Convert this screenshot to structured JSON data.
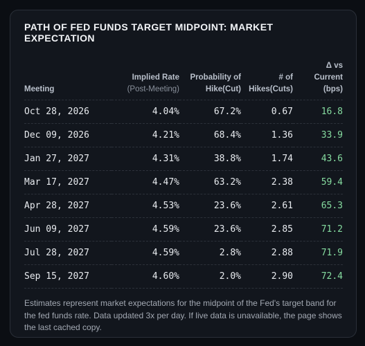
{
  "header": {
    "title": "PATH OF FED FUNDS TARGET MIDPOINT: MARKET EXPECTATION"
  },
  "table": {
    "columns": [
      {
        "lines": [
          "Meeting"
        ]
      },
      {
        "lines": [
          "Implied Rate"
        ],
        "note": "(Post-Meeting)"
      },
      {
        "lines": [
          "Probability of",
          "Hike(Cut)"
        ]
      },
      {
        "lines": [
          "# of",
          "Hikes(Cuts)"
        ]
      },
      {
        "lines": [
          "Δ vs",
          "Current",
          "(bps)"
        ]
      }
    ],
    "rows": [
      [
        "Oct 28, 2026",
        "4.04%",
        "67.2%",
        "0.67",
        "16.8"
      ],
      [
        "Dec 09, 2026",
        "4.21%",
        "68.4%",
        "1.36",
        "33.9"
      ],
      [
        "Jan 27, 2027",
        "4.31%",
        "38.8%",
        "1.74",
        "43.6"
      ],
      [
        "Mar 17, 2027",
        "4.47%",
        "63.2%",
        "2.38",
        "59.4"
      ],
      [
        "Apr 28, 2027",
        "4.53%",
        "23.6%",
        "2.61",
        "65.3"
      ],
      [
        "Jun 09, 2027",
        "4.59%",
        "23.6%",
        "2.85",
        "71.2"
      ],
      [
        "Jul 28, 2027",
        "4.59%",
        "2.8%",
        "2.88",
        "71.9"
      ],
      [
        "Sep 15, 2027",
        "4.60%",
        "2.0%",
        "2.90",
        "72.4"
      ]
    ]
  },
  "footnote": "Estimates represent market expectations for the midpoint of the Fed's target band for the fed funds rate. Data updated 3x per day. If live data is unavailable, the page shows the last cached copy."
}
